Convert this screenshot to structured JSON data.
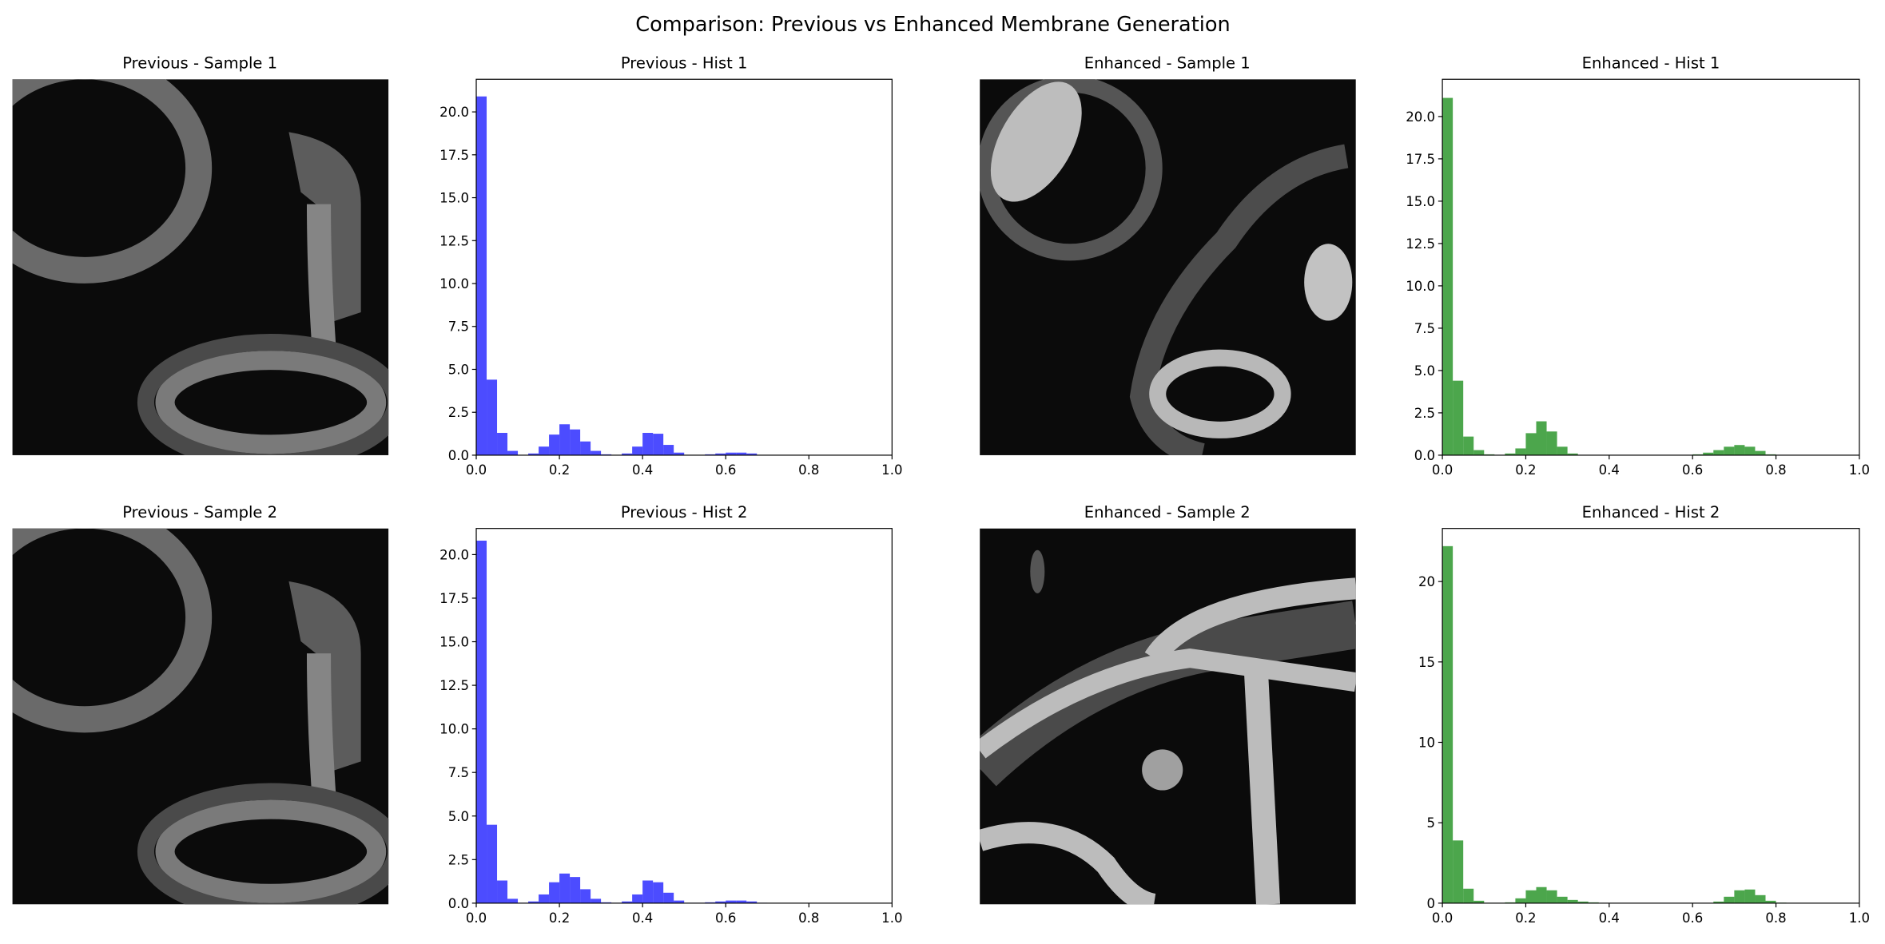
{
  "figure_title": "Comparison: Previous vs Enhanced Membrane Generation",
  "image_panels": [
    {
      "title": "Previous - Sample 1"
    },
    {
      "title": "Enhanced - Sample 1"
    },
    {
      "title": "Previous - Sample 2"
    },
    {
      "title": "Enhanced - Sample 2"
    }
  ],
  "chart_data": [
    {
      "type": "histogram",
      "title": "Previous - Hist 1",
      "color": "#0000ff",
      "alpha": 0.7,
      "bins": [
        0,
        0.025,
        0.05,
        0.075,
        0.1,
        0.125,
        0.15,
        0.175,
        0.2,
        0.225,
        0.25,
        0.275,
        0.3,
        0.325,
        0.35,
        0.375,
        0.4,
        0.425,
        0.45,
        0.475,
        0.5,
        0.525,
        0.55,
        0.575,
        0.6,
        0.625,
        0.65,
        0.675,
        0.7
      ],
      "values": [
        20.9,
        4.4,
        1.3,
        0.25,
        0.02,
        0.1,
        0.5,
        1.2,
        1.8,
        1.5,
        0.8,
        0.25,
        0.05,
        0.02,
        0.1,
        0.5,
        1.3,
        1.25,
        0.6,
        0.15,
        0.02,
        0.02,
        0.05,
        0.1,
        0.15,
        0.15,
        0.1,
        0.02
      ],
      "xlim": [
        0,
        1
      ],
      "ylim": [
        0,
        21.9
      ],
      "xticks": [
        {
          "value": 0,
          "label": "0.0"
        },
        {
          "value": 0.2,
          "label": "0.2"
        },
        {
          "value": 0.4,
          "label": "0.4"
        },
        {
          "value": 0.6,
          "label": "0.6"
        },
        {
          "value": 0.8,
          "label": "0.8"
        },
        {
          "value": 1,
          "label": "1.0"
        }
      ],
      "yticks": [
        {
          "value": 0,
          "label": "0.0"
        },
        {
          "value": 2.5,
          "label": "2.5"
        },
        {
          "value": 5,
          "label": "5.0"
        },
        {
          "value": 7.5,
          "label": "7.5"
        },
        {
          "value": 10,
          "label": "10.0"
        },
        {
          "value": 12.5,
          "label": "12.5"
        },
        {
          "value": 15,
          "label": "15.0"
        },
        {
          "value": 17.5,
          "label": "17.5"
        },
        {
          "value": 20,
          "label": "20.0"
        }
      ]
    },
    {
      "type": "histogram",
      "title": "Enhanced - Hist 1",
      "color": "#008000",
      "alpha": 0.7,
      "bins": [
        0,
        0.025,
        0.05,
        0.075,
        0.1,
        0.125,
        0.15,
        0.175,
        0.2,
        0.225,
        0.25,
        0.275,
        0.3,
        0.325,
        0.35,
        0.375,
        0.4,
        0.425,
        0.45,
        0.475,
        0.5,
        0.525,
        0.55,
        0.575,
        0.6,
        0.625,
        0.65,
        0.675,
        0.7,
        0.725,
        0.75,
        0.775,
        0.8,
        0.825
      ],
      "values": [
        21.1,
        4.4,
        1.1,
        0.3,
        0.05,
        0.02,
        0.1,
        0.4,
        1.3,
        2.0,
        1.4,
        0.5,
        0.1,
        0.02,
        0.01,
        0.01,
        0.01,
        0.01,
        0.01,
        0.01,
        0.01,
        0.01,
        0.01,
        0.01,
        0.05,
        0.15,
        0.3,
        0.5,
        0.6,
        0.5,
        0.25,
        0.05,
        0.01
      ],
      "xlim": [
        0,
        1
      ],
      "ylim": [
        0,
        22.2
      ],
      "xticks": [
        {
          "value": 0,
          "label": "0.0"
        },
        {
          "value": 0.2,
          "label": "0.2"
        },
        {
          "value": 0.4,
          "label": "0.4"
        },
        {
          "value": 0.6,
          "label": "0.6"
        },
        {
          "value": 0.8,
          "label": "0.8"
        },
        {
          "value": 1,
          "label": "1.0"
        }
      ],
      "yticks": [
        {
          "value": 0,
          "label": "0.0"
        },
        {
          "value": 2.5,
          "label": "2.5"
        },
        {
          "value": 5,
          "label": "5.0"
        },
        {
          "value": 7.5,
          "label": "7.5"
        },
        {
          "value": 10,
          "label": "10.0"
        },
        {
          "value": 12.5,
          "label": "12.5"
        },
        {
          "value": 15,
          "label": "15.0"
        },
        {
          "value": 17.5,
          "label": "17.5"
        },
        {
          "value": 20,
          "label": "20.0"
        }
      ]
    },
    {
      "type": "histogram",
      "title": "Previous - Hist 2",
      "color": "#0000ff",
      "alpha": 0.7,
      "bins": [
        0,
        0.025,
        0.05,
        0.075,
        0.1,
        0.125,
        0.15,
        0.175,
        0.2,
        0.225,
        0.25,
        0.275,
        0.3,
        0.325,
        0.35,
        0.375,
        0.4,
        0.425,
        0.45,
        0.475,
        0.5,
        0.525,
        0.55,
        0.575,
        0.6,
        0.625,
        0.65,
        0.675,
        0.7
      ],
      "values": [
        20.8,
        4.5,
        1.3,
        0.25,
        0.02,
        0.1,
        0.5,
        1.2,
        1.7,
        1.5,
        0.8,
        0.25,
        0.05,
        0.02,
        0.1,
        0.5,
        1.3,
        1.2,
        0.6,
        0.15,
        0.02,
        0.02,
        0.05,
        0.1,
        0.15,
        0.15,
        0.1,
        0.02
      ],
      "xlim": [
        0,
        1
      ],
      "ylim": [
        0,
        21.5
      ],
      "xticks": [
        {
          "value": 0,
          "label": "0.0"
        },
        {
          "value": 0.2,
          "label": "0.2"
        },
        {
          "value": 0.4,
          "label": "0.4"
        },
        {
          "value": 0.6,
          "label": "0.6"
        },
        {
          "value": 0.8,
          "label": "0.8"
        },
        {
          "value": 1,
          "label": "1.0"
        }
      ],
      "yticks": [
        {
          "value": 0,
          "label": "0.0"
        },
        {
          "value": 2.5,
          "label": "2.5"
        },
        {
          "value": 5,
          "label": "5.0"
        },
        {
          "value": 7.5,
          "label": "7.5"
        },
        {
          "value": 10,
          "label": "10.0"
        },
        {
          "value": 12.5,
          "label": "12.5"
        },
        {
          "value": 15,
          "label": "15.0"
        },
        {
          "value": 17.5,
          "label": "17.5"
        },
        {
          "value": 20,
          "label": "20.0"
        }
      ]
    },
    {
      "type": "histogram",
      "title": "Enhanced - Hist 2",
      "color": "#008000",
      "alpha": 0.7,
      "bins": [
        0,
        0.025,
        0.05,
        0.075,
        0.1,
        0.125,
        0.15,
        0.175,
        0.2,
        0.225,
        0.25,
        0.275,
        0.3,
        0.325,
        0.35,
        0.375,
        0.4,
        0.425,
        0.45,
        0.475,
        0.5,
        0.525,
        0.55,
        0.575,
        0.6,
        0.625,
        0.65,
        0.675,
        0.7,
        0.725,
        0.75,
        0.775,
        0.8,
        0.825
      ],
      "values": [
        22.2,
        3.9,
        0.9,
        0.15,
        0.02,
        0.02,
        0.05,
        0.3,
        0.8,
        1.0,
        0.8,
        0.4,
        0.2,
        0.1,
        0.05,
        0.01,
        0.01,
        0.01,
        0.01,
        0.01,
        0.01,
        0.01,
        0.01,
        0.01,
        0.01,
        0.01,
        0.1,
        0.4,
        0.8,
        0.85,
        0.5,
        0.15,
        0.03
      ],
      "xlim": [
        0,
        1
      ],
      "ylim": [
        0,
        23.3
      ],
      "xticks": [
        {
          "value": 0,
          "label": "0.0"
        },
        {
          "value": 0.2,
          "label": "0.2"
        },
        {
          "value": 0.4,
          "label": "0.4"
        },
        {
          "value": 0.6,
          "label": "0.6"
        },
        {
          "value": 0.8,
          "label": "0.8"
        },
        {
          "value": 1,
          "label": "1.0"
        }
      ],
      "yticks": [
        0,
        5,
        10,
        15,
        20
      ]
    }
  ]
}
